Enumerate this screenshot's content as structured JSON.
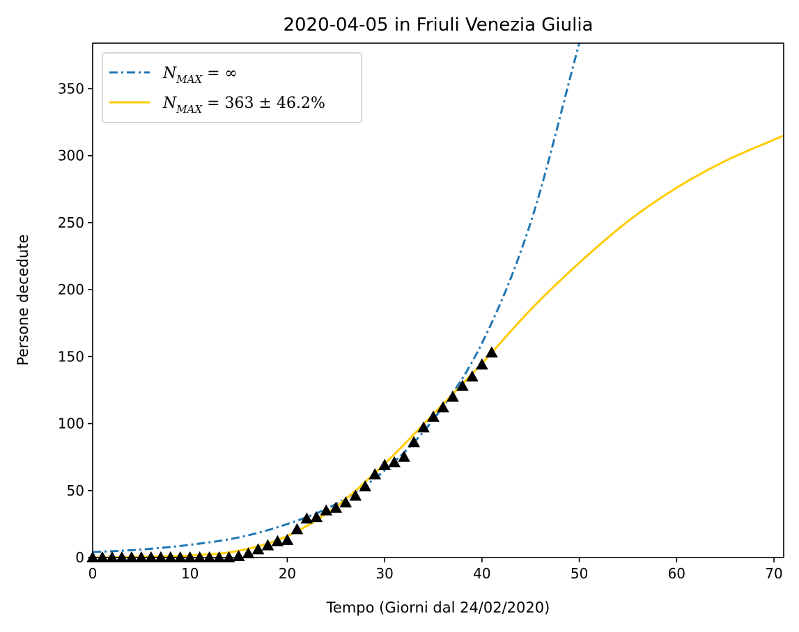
{
  "chart_data": {
    "type": "line",
    "title": "2020-04-05 in Friuli Venezia Giulia",
    "xlabel": "Tempo (Giorni dal 24/02/2020)",
    "ylabel": "Persone decedute",
    "xlim": [
      0,
      71
    ],
    "ylim": [
      0,
      384
    ],
    "xticks": [
      0,
      10,
      20,
      30,
      40,
      50,
      60,
      70
    ],
    "yticks": [
      0,
      50,
      100,
      150,
      200,
      250,
      300,
      350
    ],
    "grid": false,
    "legend_position": "top-left",
    "series": [
      {
        "name": "N_MAX = ∞",
        "legend_main": "N",
        "legend_sub": "MAX",
        "legend_rest": " = ∞",
        "style": "dashdot",
        "color": "#1f77b4",
        "x": [
          0,
          5,
          10,
          15,
          20,
          25,
          30,
          35,
          40,
          45,
          50
        ],
        "y": [
          4,
          6,
          9.5,
          15,
          25,
          40,
          65,
          103,
          160,
          250,
          384
        ]
      },
      {
        "name": "N_MAX = 363 ± 46.2%",
        "legend_main": "N",
        "legend_sub": "MAX",
        "legend_rest": " = 363 ± 46.2%",
        "style": "solid",
        "color": "#ffcc00",
        "x": [
          0,
          5,
          10,
          15,
          20,
          25,
          30,
          35,
          40,
          45,
          50,
          55,
          60,
          65,
          71
        ],
        "y": [
          0,
          0.5,
          1.5,
          5,
          16,
          38,
          70,
          107,
          145,
          185,
          220,
          251,
          276,
          296,
          315
        ]
      },
      {
        "name": "data",
        "style": "markers",
        "marker": "triangle",
        "color": "#000000",
        "x": [
          0,
          1,
          2,
          3,
          4,
          5,
          6,
          7,
          8,
          9,
          10,
          11,
          12,
          13,
          14,
          15,
          16,
          17,
          18,
          19,
          20,
          21,
          22,
          23,
          24,
          25,
          26,
          27,
          28,
          29,
          30,
          31,
          32,
          33,
          34,
          35,
          36,
          37,
          38,
          39,
          40,
          41
        ],
        "y": [
          0,
          0,
          0,
          0,
          0,
          0,
          0,
          0,
          0,
          0,
          0,
          0,
          0,
          0,
          0,
          1,
          3,
          6,
          9,
          12,
          13,
          21,
          29,
          30,
          35,
          37,
          41,
          46,
          53,
          62,
          69,
          71,
          75,
          86,
          97,
          105,
          112,
          120,
          128,
          135,
          144,
          153
        ]
      }
    ]
  }
}
